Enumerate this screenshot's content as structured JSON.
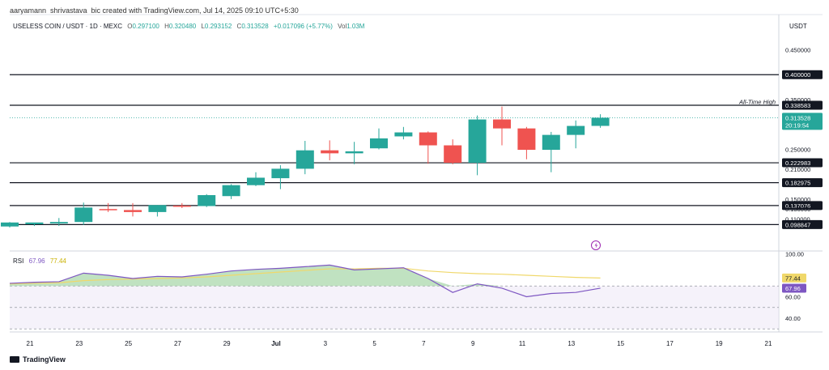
{
  "header": {
    "attribution": "aaryamann_shrivastava_bic created with TradingView.com, Jul 14, 2025 09:10 UTC+5:30"
  },
  "symbol": {
    "name": "USELESS COIN / USDT · 1D · MEXC",
    "o_label": "O",
    "o_value": "0.297100",
    "h_label": "H",
    "h_value": "0.320480",
    "l_label": "L",
    "l_value": "0.293152",
    "c_label": "C",
    "c_value": "0.313528",
    "change": "+0.017096 (+5.77%)",
    "vol_label": "Vol",
    "vol_value": "1.03M"
  },
  "axis_currency": "USDT",
  "rsi": {
    "label": "RSI",
    "value": "67.96",
    "ma_value": "77.44"
  },
  "brand": "TradingView",
  "colors": {
    "up": "#26a69a",
    "down": "#ef5350",
    "rsi_line": "#7e57c2",
    "rsi_ma": "#f0d86a",
    "level_line": "#131722",
    "tag_bg": "#131722",
    "price_tag_bg": "#26a69a"
  },
  "chart_data": {
    "type": "candlestick",
    "title": "USELESS COIN / USDT · 1D · MEXC",
    "xlabel": "",
    "ylabel": "USDT",
    "ylim": [
      0.09,
      0.48
    ],
    "x_tick_labels": [
      "21",
      "23",
      "25",
      "27",
      "29",
      "Jul",
      "3",
      "5",
      "7",
      "9",
      "11",
      "13",
      "15",
      "17",
      "19",
      "21"
    ],
    "y_tick_labels": [
      "0.450000",
      "0.350000",
      "0.250000",
      "0.210000",
      "0.150000",
      "0.130000",
      "0.110000"
    ],
    "candles": [
      {
        "x": 0,
        "o": 0.095,
        "h": 0.104,
        "l": 0.093,
        "c": 0.103
      },
      {
        "x": 1,
        "o": 0.0995,
        "h": 0.102,
        "l": 0.096,
        "c": 0.103
      },
      {
        "x": 2,
        "o": 0.101,
        "h": 0.112,
        "l": 0.096,
        "c": 0.104
      },
      {
        "x": 3,
        "o": 0.104,
        "h": 0.143,
        "l": 0.098,
        "c": 0.133
      },
      {
        "x": 4,
        "o": 0.13,
        "h": 0.142,
        "l": 0.124,
        "c": 0.129
      },
      {
        "x": 5,
        "o": 0.128,
        "h": 0.142,
        "l": 0.115,
        "c": 0.124
      },
      {
        "x": 6,
        "o": 0.124,
        "h": 0.138,
        "l": 0.115,
        "c": 0.138
      },
      {
        "x": 7,
        "o": 0.137,
        "h": 0.142,
        "l": 0.132,
        "c": 0.136
      },
      {
        "x": 8,
        "o": 0.136,
        "h": 0.16,
        "l": 0.134,
        "c": 0.158
      },
      {
        "x": 9,
        "o": 0.156,
        "h": 0.18,
        "l": 0.15,
        "c": 0.178
      },
      {
        "x": 10,
        "o": 0.178,
        "h": 0.204,
        "l": 0.176,
        "c": 0.193
      },
      {
        "x": 11,
        "o": 0.192,
        "h": 0.218,
        "l": 0.17,
        "c": 0.211
      },
      {
        "x": 12,
        "o": 0.211,
        "h": 0.267,
        "l": 0.2,
        "c": 0.248
      },
      {
        "x": 13,
        "o": 0.248,
        "h": 0.268,
        "l": 0.228,
        "c": 0.242
      },
      {
        "x": 14,
        "o": 0.242,
        "h": 0.265,
        "l": 0.22,
        "c": 0.246
      },
      {
        "x": 15,
        "o": 0.252,
        "h": 0.292,
        "l": 0.25,
        "c": 0.272
      },
      {
        "x": 16,
        "o": 0.276,
        "h": 0.295,
        "l": 0.27,
        "c": 0.284
      },
      {
        "x": 17,
        "o": 0.284,
        "h": 0.286,
        "l": 0.221,
        "c": 0.258
      },
      {
        "x": 18,
        "o": 0.258,
        "h": 0.27,
        "l": 0.22,
        "c": 0.223
      },
      {
        "x": 19,
        "o": 0.223,
        "h": 0.318,
        "l": 0.198,
        "c": 0.31
      },
      {
        "x": 20,
        "o": 0.31,
        "h": 0.336,
        "l": 0.258,
        "c": 0.292
      },
      {
        "x": 21,
        "o": 0.292,
        "h": 0.295,
        "l": 0.23,
        "c": 0.249
      },
      {
        "x": 22,
        "o": 0.249,
        "h": 0.285,
        "l": 0.204,
        "c": 0.279
      },
      {
        "x": 23,
        "o": 0.279,
        "h": 0.308,
        "l": 0.252,
        "c": 0.297
      },
      {
        "x": 24,
        "o": 0.2971,
        "h": 0.3205,
        "l": 0.2932,
        "c": 0.3135
      }
    ],
    "levels": [
      {
        "value": "0.400000"
      },
      {
        "value": "0.338583",
        "annotation": "All-Time High"
      },
      {
        "value": "0.222983"
      },
      {
        "value": "0.182975"
      },
      {
        "value": "0.137076"
      },
      {
        "value": "0.098847"
      }
    ],
    "current_price": {
      "value": "0.313528",
      "countdown": "20:19:54"
    },
    "rsi": {
      "ylim": [
        20,
        100
      ],
      "y_tick_labels": [
        "100.00",
        "77.44",
        "60.00",
        "40.00"
      ],
      "rsi_values": [
        72.5,
        73.5,
        74.0,
        82.0,
        80.0,
        77.0,
        79.0,
        78.5,
        81.0,
        84.0,
        85.5,
        86.5,
        88.0,
        89.5,
        85.0,
        86.0,
        87.0,
        77.0,
        64.0,
        72.0,
        68.0,
        60.0,
        63.0,
        64.0,
        67.96
      ],
      "ma_values": [
        72.0,
        72.5,
        73.0,
        75.0,
        76.0,
        76.5,
        77.0,
        77.5,
        78.5,
        80.0,
        81.5,
        83.0,
        84.5,
        86.0,
        86.0,
        86.5,
        86.5,
        84.0,
        82.5,
        81.5,
        81.0,
        80.0,
        79.0,
        78.0,
        77.44
      ]
    }
  }
}
